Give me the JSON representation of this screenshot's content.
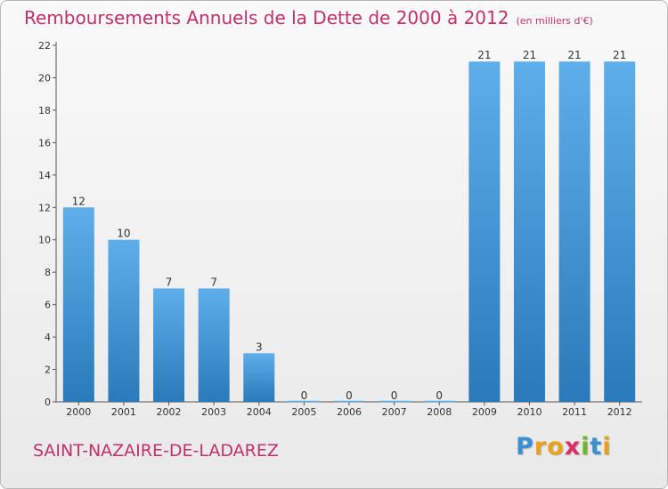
{
  "header": {
    "title": "Remboursements Annuels de la Dette de 2000 à 2012",
    "unit_note": "(en milliers d'€)"
  },
  "footer": {
    "city": "SAINT-NAZAIRE-DE-LADAREZ",
    "logo_letters": [
      "P",
      "r",
      "o",
      "x",
      "i",
      "t",
      "i"
    ],
    "logo_colors": [
      "#3a8fd0",
      "#e8a21a",
      "#e8a21a",
      "#d92e6a",
      "#6cb82a",
      "#3a8fd0",
      "#e8a21a"
    ]
  },
  "chart_data": {
    "type": "bar",
    "categories": [
      "2000",
      "2001",
      "2002",
      "2003",
      "2004",
      "2005",
      "2006",
      "2007",
      "2008",
      "2009",
      "2010",
      "2011",
      "2012"
    ],
    "values": [
      12,
      10,
      7,
      7,
      3,
      0,
      0,
      0,
      0,
      21,
      21,
      21,
      21
    ],
    "data_labels": [
      "12",
      "10",
      "7",
      "7",
      "3",
      "0",
      "0",
      "0",
      "0",
      "21",
      "21",
      "21",
      "21"
    ],
    "ylim": [
      0,
      22
    ],
    "yticks": [
      0,
      2,
      4,
      6,
      8,
      10,
      12,
      14,
      16,
      18,
      20,
      22
    ],
    "grid": false,
    "bar_color_top": "#5eaeea",
    "bar_color_bottom": "#2a7abb"
  }
}
